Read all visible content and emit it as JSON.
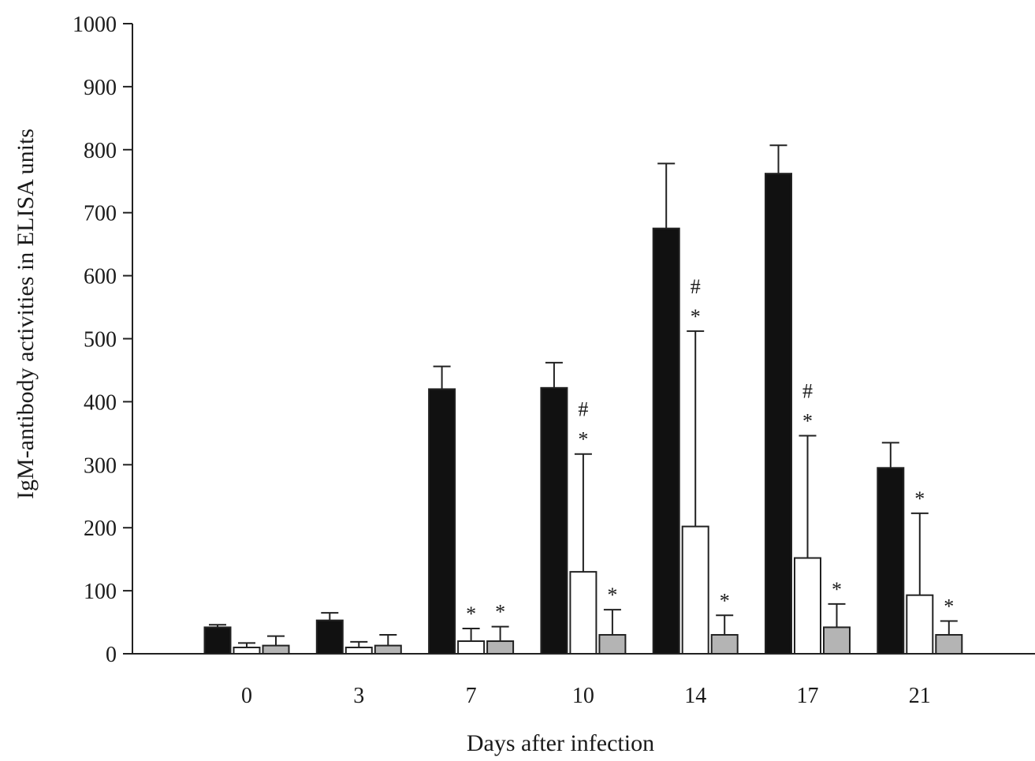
{
  "chart_data": {
    "type": "bar",
    "title": "",
    "xlabel": "Days after infection",
    "ylabel": "IgM-antibody activities in ELISA units",
    "ylim": [
      0,
      1000
    ],
    "yticks": [
      0,
      100,
      200,
      300,
      400,
      500,
      600,
      700,
      800,
      900,
      1000
    ],
    "categories": [
      "0",
      "3",
      "7",
      "10",
      "14",
      "17",
      "21"
    ],
    "grid": false,
    "legend": "none",
    "series": [
      {
        "color": "#111111",
        "values": [
          42,
          53,
          420,
          422,
          675,
          762,
          295
        ],
        "errors": [
          4,
          12,
          36,
          40,
          103,
          45,
          40
        ],
        "labels": [
          "",
          "",
          "",
          "",
          "",
          "",
          ""
        ]
      },
      {
        "color": "#ffffff",
        "values": [
          10,
          10,
          20,
          130,
          202,
          152,
          93
        ],
        "errors": [
          7,
          9,
          20,
          187,
          310,
          194,
          130
        ],
        "labels": [
          "",
          "",
          "*",
          "* #",
          "* #",
          "* #",
          "*"
        ]
      },
      {
        "color": "#b4b4b4",
        "values": [
          13,
          13,
          20,
          30,
          30,
          42,
          30
        ],
        "errors": [
          15,
          17,
          23,
          40,
          31,
          37,
          22
        ],
        "labels": [
          "",
          "",
          "*",
          "*",
          "*",
          "*",
          "*"
        ]
      }
    ]
  }
}
